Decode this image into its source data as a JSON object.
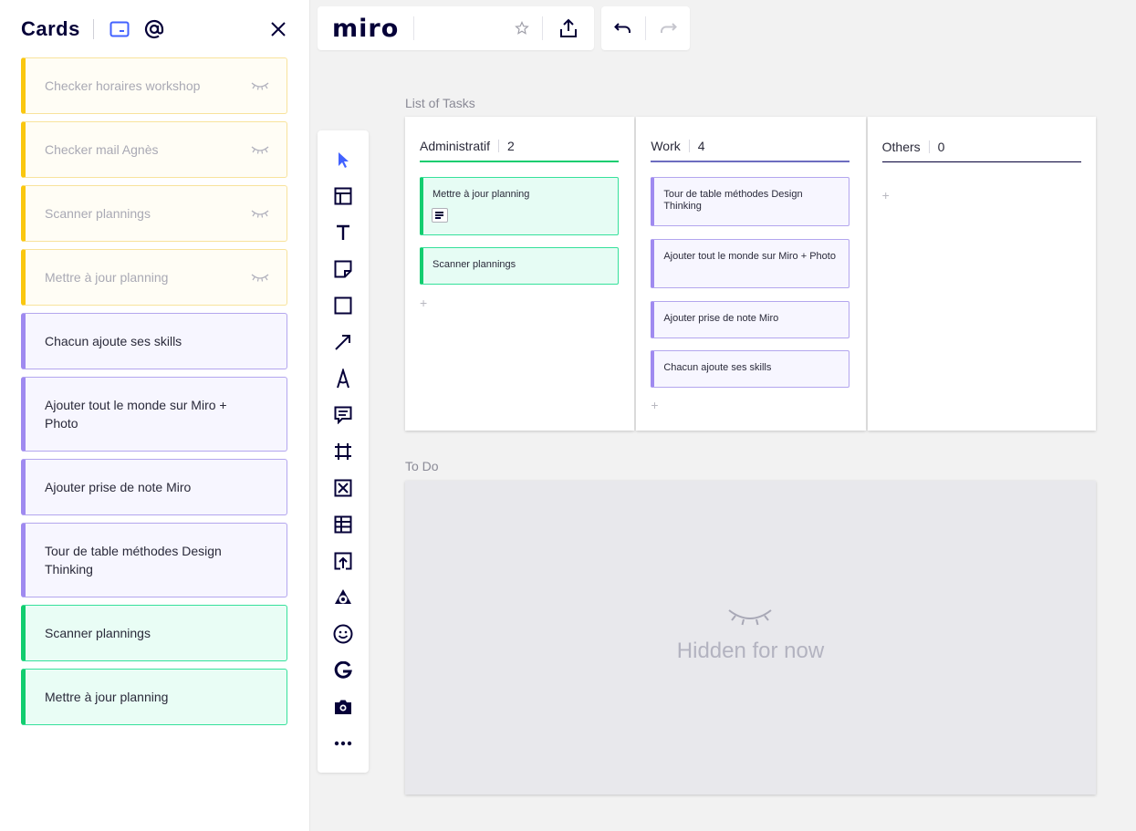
{
  "panel": {
    "title": "Cards",
    "icons": {
      "card": "card-icon",
      "mention": "at-icon",
      "close": "close-icon"
    },
    "cards": [
      {
        "text": "Checker horaires workshop",
        "color": "yellow",
        "hidden": true
      },
      {
        "text": "Checker mail Agnès",
        "color": "yellow",
        "hidden": true
      },
      {
        "text": "Scanner plannings",
        "color": "yellow",
        "hidden": true
      },
      {
        "text": "Mettre à jour planning",
        "color": "yellow",
        "hidden": true
      },
      {
        "text": "Chacun ajoute ses skills",
        "color": "purple",
        "hidden": false
      },
      {
        "text": "Ajouter tout le monde sur Miro + Photo",
        "color": "purple",
        "hidden": false
      },
      {
        "text": "Ajouter prise de note Miro",
        "color": "purple",
        "hidden": false
      },
      {
        "text": "Tour de table méthodes Design Thinking",
        "color": "purple",
        "hidden": false
      },
      {
        "text": "Scanner plannings",
        "color": "green",
        "hidden": false
      },
      {
        "text": "Mettre à jour planning",
        "color": "green",
        "hidden": false
      }
    ]
  },
  "topbar": {
    "logo": "miro",
    "icons": [
      "star-icon",
      "upload-icon",
      "undo-icon",
      "redo-icon"
    ]
  },
  "toolbar": {
    "tools": [
      "select-icon",
      "template-icon",
      "text-icon",
      "sticky-note-icon",
      "shape-icon",
      "line-icon",
      "pen-icon",
      "comment-icon",
      "frame-icon",
      "placeholder-icon",
      "table-icon",
      "upload-icon",
      "app-icon",
      "emoji-icon",
      "google-icon",
      "camera-icon",
      "more-icon"
    ]
  },
  "board": {
    "kanban_label": "List of Tasks",
    "columns": [
      {
        "name": "Administratif",
        "count": "2",
        "accent": "#12cd6f",
        "cards": [
          "Mettre à jour planning",
          "Scanner plannings"
        ]
      },
      {
        "name": "Work",
        "count": "4",
        "accent": "#6c6cbf",
        "cards": [
          "Tour de table méthodes Design Thinking",
          "Ajouter tout le monde sur Miro + Photo",
          "Ajouter prise de note Miro",
          "Chacun ajoute ses skills"
        ]
      },
      {
        "name": "Others",
        "count": "0",
        "accent": "#050038",
        "cards": []
      }
    ],
    "plus": "+",
    "todo_label": "To Do",
    "hidden_text": "Hidden for now"
  },
  "colors": {
    "yellow": "#fac710",
    "purple": "#9f8af0",
    "green": "#12cd6f",
    "brand": "#050038"
  }
}
